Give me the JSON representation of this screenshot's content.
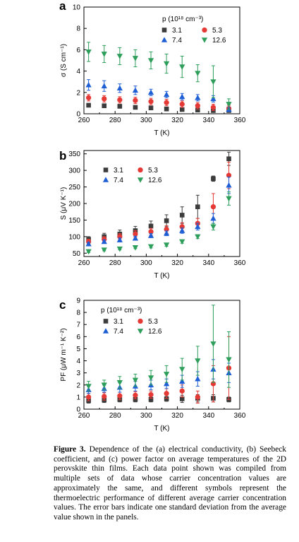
{
  "caption": {
    "label": "Figure 3.",
    "text": "Dependence of the (a) electrical conductivity, (b) Seebeck coefficient, and (c) power factor on average temperatures of the 2D perovskite thin films. Each data point shown was compiled from multiple sets of data whose carrier concentration values are approximately the same, and different symbols represent the thermoelectric performance of different average carrier concentration values. The error bars indicate one standard deviation from the average value shown in the panels."
  },
  "colors": {
    "s31": "#3c3c3c",
    "s53": "#e53935",
    "s74": "#1f5fd6",
    "s126": "#2e9e5b"
  },
  "chart_data": [
    {
      "panel_label": "a",
      "type": "scatter",
      "xlabel": "T (K)",
      "ylabel": "σ (S cm⁻¹)",
      "xlim": [
        260,
        360
      ],
      "ylim": [
        0,
        10
      ],
      "xticks": [
        260,
        280,
        300,
        320,
        340,
        360
      ],
      "yticks": [
        0,
        2,
        4,
        6,
        8,
        10
      ],
      "legend_title": "p (10¹⁸ cm⁻³)",
      "legend_position": "top-right",
      "x": [
        263,
        273,
        283,
        293,
        303,
        313,
        323,
        333,
        343,
        353
      ],
      "series": [
        {
          "name": "3.1",
          "marker": "square",
          "color": "#3c3c3c",
          "values": [
            0.8,
            0.75,
            0.7,
            0.6,
            0.55,
            0.45,
            0.4,
            0.35,
            0.3,
            0.3
          ],
          "errors": [
            0.1,
            0.1,
            0.1,
            0.1,
            0.1,
            0.1,
            0.1,
            0.1,
            0.1,
            0.1
          ]
        },
        {
          "name": "5.3",
          "marker": "circle",
          "color": "#e53935",
          "values": [
            1.5,
            1.4,
            1.3,
            1.25,
            1.15,
            1.05,
            0.9,
            0.75,
            0.6,
            0.5
          ],
          "errors": [
            0.3,
            0.3,
            0.3,
            0.3,
            0.3,
            0.3,
            0.3,
            0.3,
            0.3,
            0.3
          ]
        },
        {
          "name": "7.4",
          "marker": "triangle-up",
          "color": "#1f5fd6",
          "values": [
            2.7,
            2.6,
            2.4,
            2.2,
            2.0,
            1.8,
            1.6,
            1.5,
            1.4,
            0.4
          ],
          "errors": [
            0.5,
            0.5,
            0.4,
            0.4,
            0.3,
            0.3,
            0.3,
            0.3,
            0.3,
            0.2
          ]
        },
        {
          "name": "12.6",
          "marker": "triangle-down",
          "color": "#2e9e5b",
          "values": [
            5.8,
            5.6,
            5.4,
            5.2,
            5.0,
            4.7,
            4.4,
            3.8,
            3.0,
            0.9
          ],
          "errors": [
            0.9,
            0.8,
            0.8,
            0.8,
            0.8,
            0.9,
            1.0,
            0.8,
            1.5,
            0.5
          ]
        }
      ]
    },
    {
      "panel_label": "b",
      "type": "scatter",
      "xlabel": "T (K)",
      "ylabel": "S (μV K⁻¹)",
      "xlim": [
        260,
        360
      ],
      "ylim": [
        40,
        360
      ],
      "xticks": [
        260,
        280,
        300,
        320,
        340,
        360
      ],
      "yticks": [
        50,
        100,
        150,
        200,
        250,
        300,
        350
      ],
      "legend_position": "top-left",
      "x": [
        263,
        273,
        283,
        293,
        303,
        313,
        323,
        333,
        343,
        353
      ],
      "series": [
        {
          "name": "3.1",
          "marker": "square",
          "color": "#3c3c3c",
          "values": [
            92,
            100,
            108,
            118,
            132,
            148,
            165,
            190,
            275,
            335
          ],
          "errors": [
            8,
            10,
            12,
            13,
            15,
            18,
            25,
            35,
            8,
            20
          ]
        },
        {
          "name": "5.3",
          "marker": "circle",
          "color": "#e53935",
          "values": [
            85,
            92,
            100,
            108,
            115,
            122,
            130,
            140,
            190,
            285
          ],
          "errors": [
            7,
            8,
            9,
            10,
            10,
            11,
            12,
            15,
            40,
            40
          ]
        },
        {
          "name": "7.4",
          "marker": "triangle-up",
          "color": "#1f5fd6",
          "values": [
            78,
            85,
            90,
            95,
            103,
            110,
            118,
            130,
            155,
            255
          ],
          "errors": [
            5,
            5,
            6,
            6,
            6,
            7,
            8,
            10,
            15,
            25
          ]
        },
        {
          "name": "12.6",
          "marker": "triangle-down",
          "color": "#2e9e5b",
          "values": [
            55,
            60,
            63,
            67,
            70,
            75,
            85,
            100,
            130,
            215
          ],
          "errors": [
            3,
            3,
            3,
            3,
            4,
            4,
            5,
            6,
            10,
            20
          ]
        }
      ]
    },
    {
      "panel_label": "c",
      "type": "scatter",
      "xlabel": "T (K)",
      "ylabel": "PF (μW m⁻¹ K⁻²)",
      "xlim": [
        260,
        360
      ],
      "ylim": [
        0,
        9
      ],
      "xticks": [
        260,
        280,
        300,
        320,
        340,
        360
      ],
      "yticks": [
        0,
        1,
        2,
        3,
        4,
        5,
        6,
        7,
        8,
        9
      ],
      "legend_title": "p (10¹⁸ cm⁻³)",
      "legend_position": "top-left",
      "x": [
        263,
        273,
        283,
        293,
        303,
        313,
        323,
        333,
        343,
        353
      ],
      "series": [
        {
          "name": "3.1",
          "marker": "square",
          "color": "#3c3c3c",
          "values": [
            0.7,
            0.75,
            0.8,
            0.8,
            0.8,
            0.85,
            0.85,
            0.9,
            0.9,
            0.8
          ],
          "errors": [
            0.2,
            0.2,
            0.2,
            0.2,
            0.2,
            0.2,
            0.3,
            0.3,
            0.3,
            0.2
          ]
        },
        {
          "name": "5.3",
          "marker": "circle",
          "color": "#e53935",
          "values": [
            1.0,
            1.05,
            1.1,
            1.15,
            1.2,
            1.3,
            1.5,
            1.0,
            2.1,
            3.4
          ],
          "errors": [
            0.3,
            0.3,
            0.3,
            0.3,
            0.3,
            0.4,
            0.5,
            0.5,
            1.5,
            2.6
          ]
        },
        {
          "name": "7.4",
          "marker": "triangle-up",
          "color": "#1f5fd6",
          "values": [
            1.6,
            1.7,
            1.8,
            1.9,
            2.0,
            2.1,
            2.3,
            2.5,
            3.3,
            3.0
          ],
          "errors": [
            0.3,
            0.3,
            0.4,
            0.4,
            0.4,
            0.4,
            0.5,
            0.6,
            0.8,
            0.8
          ]
        },
        {
          "name": "12.6",
          "marker": "triangle-down",
          "color": "#2e9e5b",
          "values": [
            1.9,
            2.0,
            2.2,
            2.4,
            2.6,
            2.9,
            3.3,
            4.0,
            5.4,
            4.1
          ],
          "errors": [
            0.4,
            0.4,
            0.5,
            0.5,
            0.6,
            0.7,
            0.9,
            1.2,
            3.2,
            2.3
          ]
        }
      ]
    }
  ]
}
